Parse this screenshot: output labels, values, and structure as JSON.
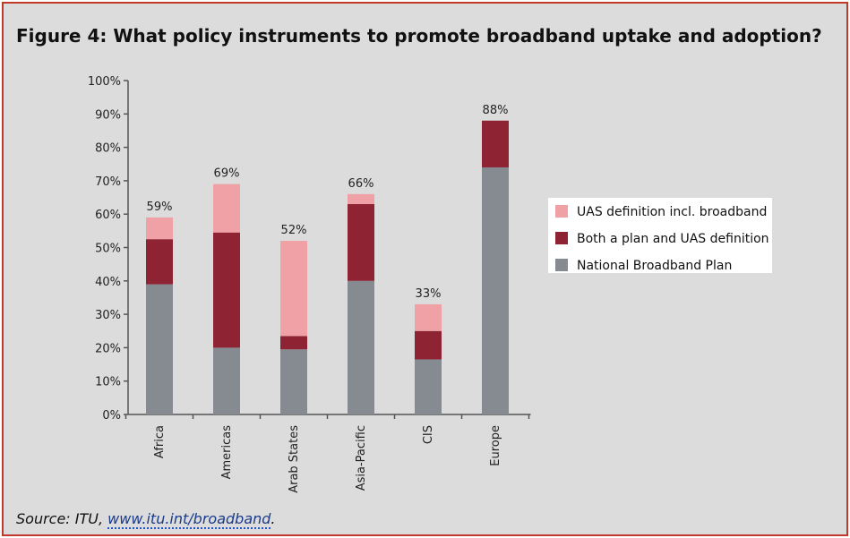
{
  "header": {
    "title": "Figure 4: What policy instruments to promote broadband uptake and adoption?"
  },
  "footer": {
    "source_prefix": "Source: ITU, ",
    "source_link": "www.itu.int/broadband",
    "source_suffix": "."
  },
  "colors": {
    "uas": "#f0a1a6",
    "both": "#8e2333",
    "national": "#868a91",
    "frame": "#c0392b",
    "background": "#dcdcdc"
  },
  "chart_data": {
    "type": "bar",
    "stacked": true,
    "categories": [
      "Africa",
      "Americas",
      "Arab States",
      "Asia-Pacific",
      "CIS",
      "Europe"
    ],
    "series": [
      {
        "name": "National Broadband Plan",
        "values": [
          39,
          20,
          19.5,
          40,
          16.5,
          74
        ]
      },
      {
        "name": "Both a plan and UAS definition",
        "values": [
          13.5,
          34.5,
          4,
          23,
          8.5,
          14
        ]
      },
      {
        "name": "UAS definition incl. broadband",
        "values": [
          6.5,
          14.5,
          28.5,
          3,
          8,
          0
        ]
      }
    ],
    "totals": [
      "59%",
      "69%",
      "52%",
      "66%",
      "33%",
      "88%"
    ],
    "y_ticks": [
      "0%",
      "10%",
      "20%",
      "30%",
      "40%",
      "50%",
      "60%",
      "70%",
      "80%",
      "90%",
      "100%"
    ],
    "ylim": [
      0,
      100
    ],
    "legend_position": "right",
    "legend_order": [
      "UAS definition incl. broadband",
      "Both a plan and UAS definition",
      "National Broadband Plan"
    ]
  }
}
